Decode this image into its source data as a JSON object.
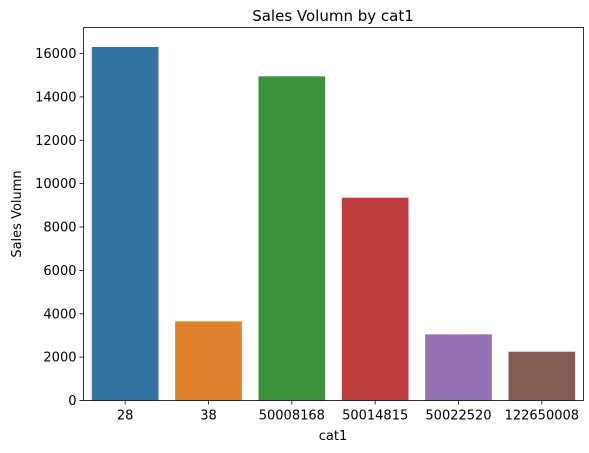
{
  "chart_data": {
    "type": "bar",
    "title": "Sales Volumn by cat1",
    "xlabel": "cat1",
    "ylabel": "Sales Volumn",
    "categories": [
      "28",
      "38",
      "50008168",
      "50014815",
      "50022520",
      "122650008"
    ],
    "values": [
      16300,
      3650,
      14950,
      9350,
      3050,
      2250
    ],
    "colors": [
      "#3274a1",
      "#e1812c",
      "#3a923a",
      "#c03d3e",
      "#9372b2",
      "#845b53"
    ],
    "ylim": [
      0,
      17200
    ],
    "yticks": [
      0,
      2000,
      4000,
      6000,
      8000,
      10000,
      12000,
      14000,
      16000
    ],
    "grid": false,
    "legend": "none"
  }
}
